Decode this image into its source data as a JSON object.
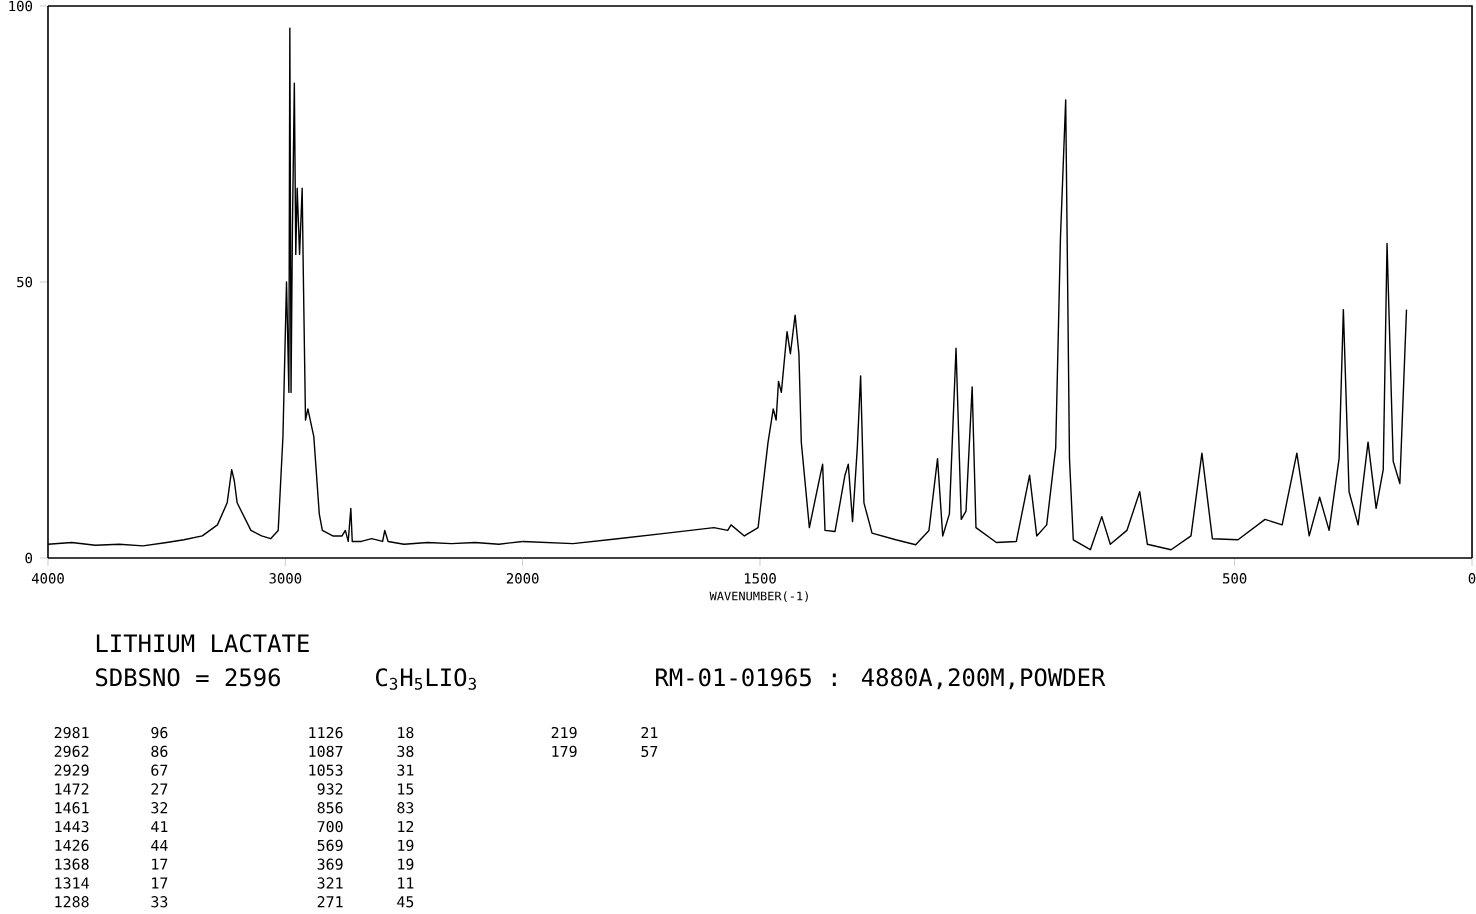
{
  "chart_data": [
    {
      "type": "line",
      "title": "LITHIUM LACTATE",
      "annotations": [
        "SDBSNO = 2596",
        "C$_{3}$H$_{5}$LIO$_{3}$",
        "RM-01-01965 : 4880A,200M,POWDER",
        "2981",
        "96",
        "2962",
        "86",
        "2929",
        "67",
        "1472",
        "27",
        "1461",
        "32",
        "1443",
        "41",
        "1426",
        "44",
        "1368",
        "17",
        "1314",
        "17",
        "1288",
        "33",
        "1126",
        "18",
        "1087",
        "38",
        "1053",
        "31",
        "932",
        "15",
        "856",
        "83",
        "700",
        "12",
        "569",
        "19",
        "369",
        "19",
        "321",
        "11",
        "271",
        "45",
        "219",
        "21",
        "179",
        "57"
      ],
      "xlim": [
        4000,
        2000
      ],
      "ylim": [
        0,
        100
      ],
      "xticks": [
        4000,
        3000,
        2000
      ],
      "yticks": [
        0,
        50,
        100
      ],
      "line_style": "solid",
      "series": [
        {
          "color": "#000000",
          "x": [
            4000,
            3900,
            3800,
            3700,
            3600,
            3500,
            3427,
            3350,
            3286,
            3245,
            3226,
            3215,
            3203,
            3145,
            3100,
            3062,
            3030,
            3010,
            2995,
            2985,
            2981,
            2976,
            2970,
            2962,
            2956,
            2950,
            2940,
            2929,
            2924,
            2915,
            2905,
            2890,
            2880,
            2857,
            2844,
            2800,
            2761,
            2747,
            2735,
            2724,
            2718,
            2680,
            2636,
            2590,
            2581,
            2567,
            2500,
            2400,
            2300,
            2200,
            2100,
            2000
          ],
          "values": [
            2.5,
            2.8,
            2.3,
            2.5,
            2.2,
            2.8,
            3.3,
            4,
            6,
            10,
            16,
            14,
            10,
            5,
            4,
            3.5,
            5,
            22,
            50,
            30,
            96,
            30,
            60,
            86,
            55,
            67,
            55,
            67,
            51,
            25,
            27,
            24,
            22,
            8,
            5,
            4,
            4,
            5,
            3,
            9,
            3,
            3,
            3.5,
            3,
            5,
            3,
            2.5,
            2.8,
            2.6,
            2.8,
            2.5,
            3
          ]
        }
      ]
    },
    {
      "type": "line",
      "xlabel": "WAVENUMBER(-1)",
      "xlim": [
        2000,
        0
      ],
      "ylim": [
        0,
        100
      ],
      "xticks": [
        1500,
        500,
        0
      ],
      "tick_labels": "x",
      "line_style": "solid",
      "series": [
        {
          "color": "#000000",
          "x": [
            2000,
            1894,
            1800,
            1696,
            1597,
            1568,
            1561,
            1533,
            1504,
            1483,
            1472,
            1466,
            1461,
            1455,
            1443,
            1436,
            1426,
            1418,
            1413,
            1396,
            1373,
            1368,
            1363,
            1342,
            1321,
            1314,
            1305,
            1295,
            1288,
            1281,
            1264,
            1214,
            1172,
            1144,
            1126,
            1115,
            1101,
            1087,
            1076,
            1066,
            1053,
            1045,
            1002,
            960,
            932,
            917,
            896,
            877,
            867,
            856,
            848,
            840,
            804,
            780,
            762,
            727,
            700,
            684,
            634,
            592,
            569,
            547,
            493,
            436,
            400,
            369,
            343,
            321,
            301,
            280,
            271,
            259,
            240,
            219,
            202,
            187,
            179,
            166,
            152,
            138
          ],
          "values": [
            3,
            2.6,
            3.5,
            4.5,
            5.5,
            5,
            6,
            4,
            5.5,
            21,
            27,
            25,
            32,
            30,
            41,
            37,
            44,
            37,
            21,
            5.5,
            15,
            17,
            5,
            4.8,
            15,
            17,
            6.6,
            20,
            33,
            10,
            4.5,
            3.3,
            2.4,
            5,
            18,
            4,
            8,
            38,
            7,
            8.5,
            31,
            5.5,
            2.8,
            3,
            15,
            4,
            6,
            20,
            58,
            83,
            18,
            3.3,
            1.5,
            7.5,
            2.5,
            5,
            12,
            2.5,
            1.5,
            4,
            19,
            3.5,
            3.3,
            7,
            6,
            19,
            4,
            11,
            5,
            18,
            45,
            12,
            6,
            21,
            9,
            16,
            57,
            17.5,
            13.5,
            45
          ]
        }
      ]
    }
  ]
}
